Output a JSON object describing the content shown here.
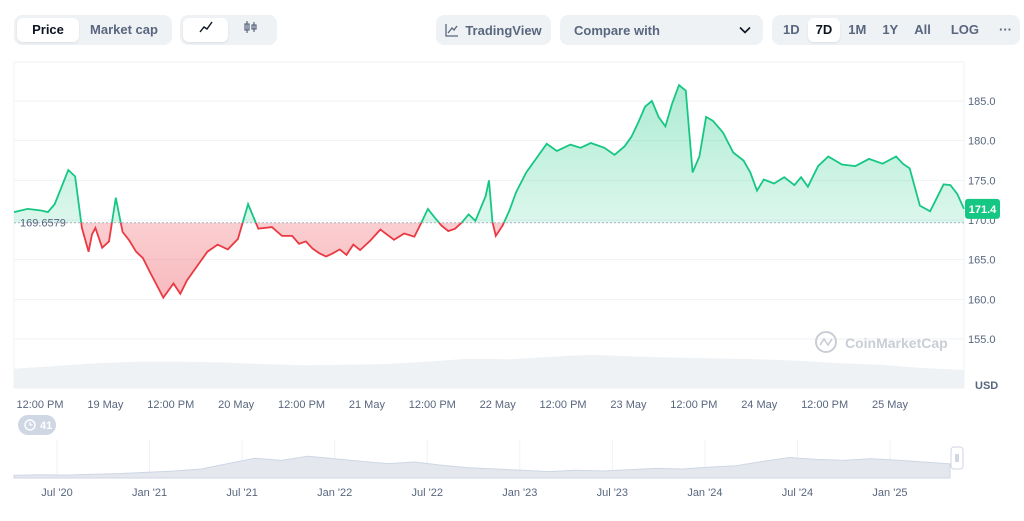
{
  "toolbar": {
    "type_options": [
      "Price",
      "Market cap"
    ],
    "active_type": "Price",
    "style_options": [
      "line-chart-icon",
      "candlestick-icon"
    ],
    "tradingview_label": "TradingView",
    "compare_label": "Compare with",
    "ranges": [
      "1D",
      "7D",
      "1M",
      "1Y",
      "All"
    ],
    "active_range": "7D",
    "log_label": "LOG",
    "more_label": "···"
  },
  "chart_data": {
    "type": "area",
    "y_ticks": [
      "185.0",
      "180.0",
      "175.0",
      "170.0",
      "165.0",
      "160.0",
      "155.0"
    ],
    "ylim": [
      152,
      188
    ],
    "ylabel": "USD",
    "x_ticks": [
      "12:00 PM",
      "19 May",
      "12:00 PM",
      "20 May",
      "12:00 PM",
      "21 May",
      "12:00 PM",
      "22 May",
      "12:00 PM",
      "23 May",
      "12:00 PM",
      "24 May",
      "12:00 PM",
      "25 May"
    ],
    "baseline": 169.6579,
    "baseline_label": "169.6579",
    "current_price": 171.4,
    "current_label": "171.4",
    "up_color": "#16c784",
    "down_color": "#ea3943",
    "watermark": "CoinMarketCap",
    "series": [
      {
        "x": [
          0,
          0.2,
          0.4,
          0.5,
          0.6,
          0.8,
          0.9,
          1.0,
          1.1,
          1.15,
          1.2,
          1.3,
          1.4,
          1.5,
          1.6,
          1.7,
          1.8,
          1.9,
          2.0,
          2.2,
          2.35,
          2.45,
          2.55,
          2.7,
          2.85,
          3.0,
          3.15,
          3.3,
          3.45,
          3.6,
          3.8,
          3.95,
          4.1,
          4.2,
          4.3,
          4.4,
          4.5,
          4.6,
          4.7,
          4.8,
          4.9,
          5.0,
          5.1,
          5.25,
          5.4,
          5.6,
          5.75,
          5.9,
          6.0,
          6.1,
          6.2,
          6.3,
          6.4,
          6.5,
          6.6,
          6.7,
          6.8,
          6.95,
          7.0,
          7.05,
          7.1,
          7.2,
          7.3,
          7.4,
          7.55,
          7.7,
          7.85,
          8.0,
          8.2,
          8.35,
          8.5,
          8.7,
          8.85,
          9.0,
          9.1,
          9.2,
          9.3,
          9.4,
          9.5,
          9.6,
          9.7,
          9.8,
          9.9,
          10.0,
          10.1,
          10.2,
          10.3,
          10.45,
          10.6,
          10.75,
          10.85,
          10.95,
          11.05,
          11.2,
          11.35,
          11.5,
          11.6,
          11.7,
          11.85,
          12.0,
          12.2,
          12.4,
          12.6,
          12.8,
          13.0,
          13.1,
          13.2,
          13.35,
          13.5,
          13.6,
          13.7,
          13.8,
          13.9,
          14.0
        ],
        "values": [
          171,
          171.4,
          171.2,
          171.0,
          172.0,
          176.3,
          175.5,
          169.0,
          166.0,
          168.2,
          169.0,
          166.5,
          167.3,
          172.8,
          168.5,
          167.4,
          166.0,
          165.2,
          163.5,
          160.2,
          162.0,
          160.7,
          162.4,
          164.2,
          166.0,
          166.9,
          166.3,
          167.6,
          172.0,
          168.9,
          169.1,
          168.0,
          168.0,
          167.0,
          167.3,
          166.4,
          165.8,
          165.4,
          165.8,
          166.3,
          165.6,
          166.9,
          166.2,
          167.4,
          168.8,
          167.5,
          168.3,
          167.9,
          169.6,
          171.4,
          170.3,
          169.3,
          168.6,
          168.9,
          169.7,
          170.7,
          169.9,
          173.0,
          175.0,
          169.8,
          168.0,
          169.3,
          171.2,
          173.5,
          176.0,
          177.8,
          179.6,
          178.7,
          179.5,
          179.1,
          179.7,
          179.1,
          178.2,
          179.3,
          180.5,
          182.3,
          184.3,
          185.0,
          183.0,
          181.8,
          184.7,
          187.0,
          186.3,
          176.0,
          178.0,
          183.0,
          182.5,
          181.0,
          178.5,
          177.5,
          176.0,
          173.7,
          175.1,
          174.6,
          175.4,
          174.4,
          175.4,
          174.2,
          176.8,
          178.0,
          177.0,
          176.8,
          177.7,
          177.1,
          178.0,
          177.1,
          176.5,
          171.8,
          171.1,
          172.8,
          174.5,
          174.4,
          173.3,
          171.4
        ]
      }
    ],
    "volume_values": [
      0.48,
      0.55,
      0.62,
      0.66,
      0.66,
      0.64,
      0.6,
      0.57,
      0.58,
      0.6,
      0.66,
      0.73,
      0.72,
      0.78,
      0.83,
      0.79,
      0.76,
      0.74,
      0.72,
      0.68,
      0.62,
      0.58,
      0.5,
      0.45
    ],
    "overview": {
      "x_ticks": [
        "Jul '20",
        "Jan '21",
        "Jul '21",
        "Jan '22",
        "Jul '22",
        "Jan '23",
        "Jul '23",
        "Jan '24",
        "Jul '24",
        "Jan '25"
      ],
      "values": [
        0.08,
        0.1,
        0.09,
        0.12,
        0.14,
        0.18,
        0.22,
        0.28,
        0.45,
        0.62,
        0.55,
        0.68,
        0.6,
        0.52,
        0.45,
        0.5,
        0.4,
        0.32,
        0.28,
        0.24,
        0.2,
        0.24,
        0.22,
        0.26,
        0.3,
        0.28,
        0.34,
        0.38,
        0.52,
        0.64,
        0.58,
        0.55,
        0.6,
        0.56,
        0.5,
        0.44
      ]
    },
    "events_count": "41"
  }
}
